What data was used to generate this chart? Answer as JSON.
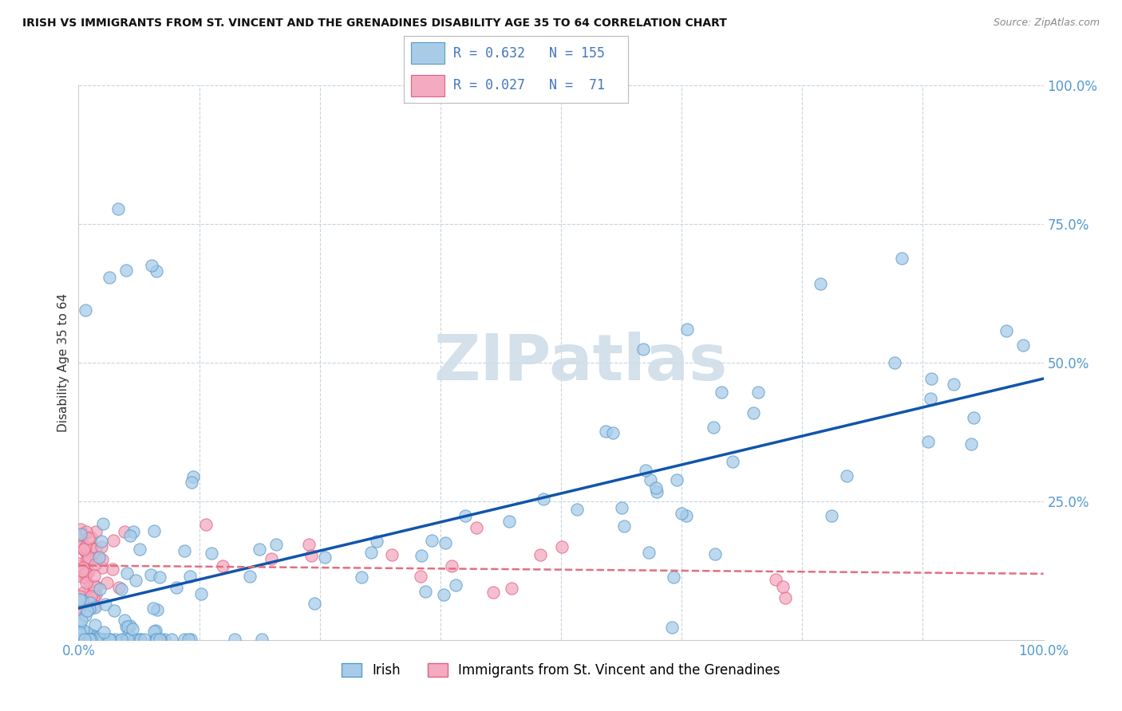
{
  "title": "IRISH VS IMMIGRANTS FROM ST. VINCENT AND THE GRENADINES DISABILITY AGE 35 TO 64 CORRELATION CHART",
  "source": "Source: ZipAtlas.com",
  "ylabel": "Disability Age 35 to 64",
  "legend_irish_R": 0.632,
  "legend_irish_N": 155,
  "legend_svg_R": 0.027,
  "legend_svg_N": 71,
  "irish_color": "#a8cce8",
  "irish_edge_color": "#5599cc",
  "svg_color": "#f4aac0",
  "svg_edge_color": "#e06080",
  "trend_irish_color": "#1155aa",
  "trend_svg_color": "#e07080",
  "watermark_color": "#d0dde8",
  "background_color": "#ffffff",
  "grid_color": "#c8d4e0",
  "tick_color": "#5599cc",
  "title_color": "#111111",
  "source_color": "#888888",
  "ylabel_color": "#333333",
  "legend_text_color": "#4477bb"
}
